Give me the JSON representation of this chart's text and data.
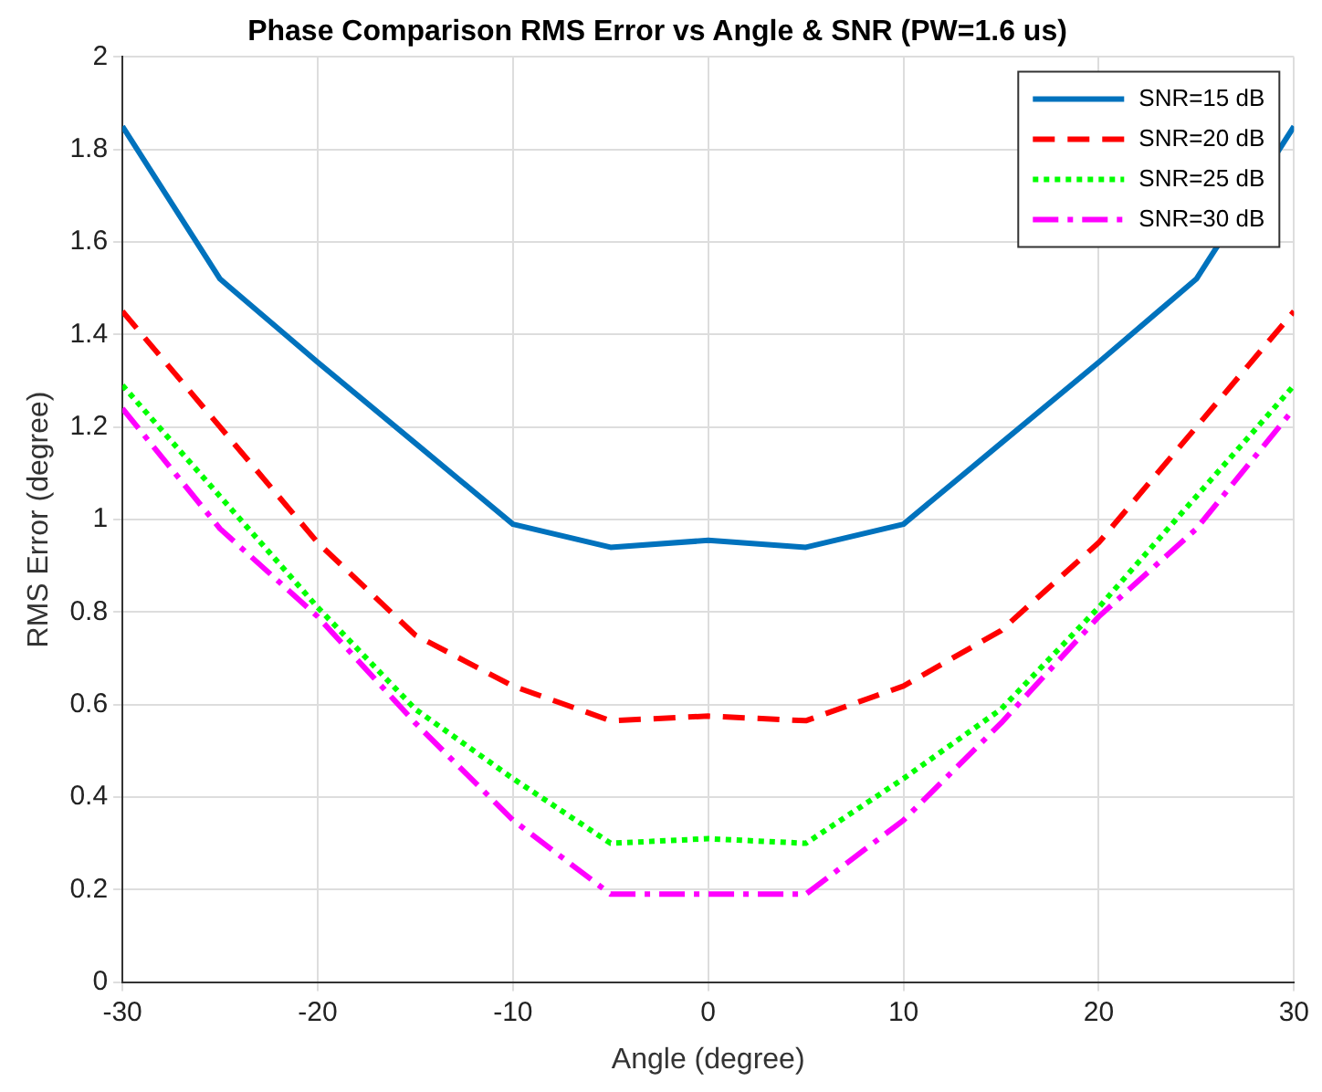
{
  "chart_data": {
    "type": "line",
    "title": "Phase Comparison RMS Error vs Angle & SNR (PW=1.6 us)",
    "xlabel": "Angle (degree)",
    "ylabel": "RMS Error (degree)",
    "x": [
      -30,
      -25,
      -20,
      -15,
      -10,
      -5,
      0,
      5,
      10,
      15,
      20,
      25,
      30
    ],
    "series": [
      {
        "name": "SNR=15 dB",
        "color": "#0072bd",
        "line_style": "solid",
        "values": [
          1.85,
          1.52,
          1.34,
          1.165,
          0.99,
          0.94,
          0.955,
          0.94,
          0.99,
          1.165,
          1.34,
          1.52,
          1.85
        ]
      },
      {
        "name": "SNR=20 dB",
        "color": "#ff0000",
        "line_style": "dashed",
        "values": [
          1.45,
          1.2,
          0.95,
          0.75,
          0.64,
          0.565,
          0.575,
          0.565,
          0.64,
          0.76,
          0.95,
          1.2,
          1.45
        ]
      },
      {
        "name": "SNR=25 dB",
        "color": "#00ff00",
        "line_style": "dotted",
        "values": [
          1.29,
          1.05,
          0.81,
          0.59,
          0.44,
          0.3,
          0.31,
          0.3,
          0.44,
          0.59,
          0.81,
          1.05,
          1.29
        ]
      },
      {
        "name": "SNR=30 dB",
        "color": "#ff00ff",
        "line_style": "dashdot",
        "values": [
          1.24,
          0.98,
          0.79,
          0.56,
          0.35,
          0.19,
          0.19,
          0.19,
          0.35,
          0.56,
          0.79,
          0.98,
          1.24
        ]
      }
    ],
    "xlim": [
      -30,
      30
    ],
    "xticks": [
      -30,
      -20,
      -10,
      0,
      10,
      20,
      30
    ],
    "ylim": [
      0,
      2
    ],
    "yticks": [
      0,
      0.2,
      0.4,
      0.6,
      0.8,
      1,
      1.2,
      1.4,
      1.6,
      1.8,
      2
    ],
    "grid": true,
    "legend": "top right",
    "marker": "none"
  }
}
